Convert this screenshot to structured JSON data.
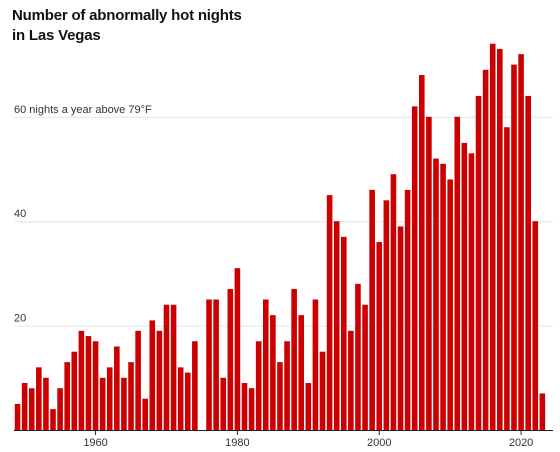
{
  "chart_data": {
    "type": "bar",
    "title_lines": [
      "Number of abnormally hot nights",
      "in Las Vegas"
    ],
    "y_ticks": [
      {
        "value": 20,
        "label": "20"
      },
      {
        "value": 40,
        "label": "40"
      },
      {
        "value": 60,
        "label": "60 nights a year above 79°F"
      }
    ],
    "x_ticks": [
      {
        "value": 1960,
        "label": "1960"
      },
      {
        "value": 1980,
        "label": "1980"
      },
      {
        "value": 2000,
        "label": "2000"
      },
      {
        "value": 2020,
        "label": "2020"
      }
    ],
    "xlim": [
      1949,
      2024
    ],
    "ylim": [
      0,
      75
    ],
    "grid": true,
    "bar_color": "#cc0000",
    "x": [
      1949,
      1950,
      1951,
      1952,
      1953,
      1954,
      1955,
      1956,
      1957,
      1958,
      1959,
      1960,
      1961,
      1962,
      1963,
      1964,
      1965,
      1966,
      1967,
      1968,
      1969,
      1970,
      1971,
      1972,
      1973,
      1974,
      1975,
      1976,
      1977,
      1978,
      1979,
      1980,
      1981,
      1982,
      1983,
      1984,
      1985,
      1986,
      1987,
      1988,
      1989,
      1990,
      1991,
      1992,
      1993,
      1994,
      1995,
      1996,
      1997,
      1998,
      1999,
      2000,
      2001,
      2002,
      2003,
      2004,
      2005,
      2006,
      2007,
      2008,
      2009,
      2010,
      2011,
      2012,
      2013,
      2014,
      2015,
      2016,
      2017,
      2018,
      2019,
      2020,
      2021,
      2022,
      2023
    ],
    "values": [
      5,
      9,
      8,
      12,
      10,
      4,
      8,
      13,
      15,
      19,
      18,
      17,
      10,
      12,
      16,
      10,
      13,
      19,
      6,
      21,
      19,
      24,
      24,
      12,
      11,
      17,
      0,
      25,
      25,
      10,
      27,
      31,
      9,
      8,
      17,
      25,
      22,
      13,
      17,
      27,
      22,
      9,
      25,
      15,
      45,
      40,
      37,
      19,
      28,
      24,
      46,
      36,
      44,
      49,
      39,
      46,
      62,
      68,
      60,
      52,
      51,
      48,
      60,
      55,
      53,
      64,
      69,
      74,
      73,
      58,
      70,
      72,
      64,
      40,
      7
    ]
  }
}
